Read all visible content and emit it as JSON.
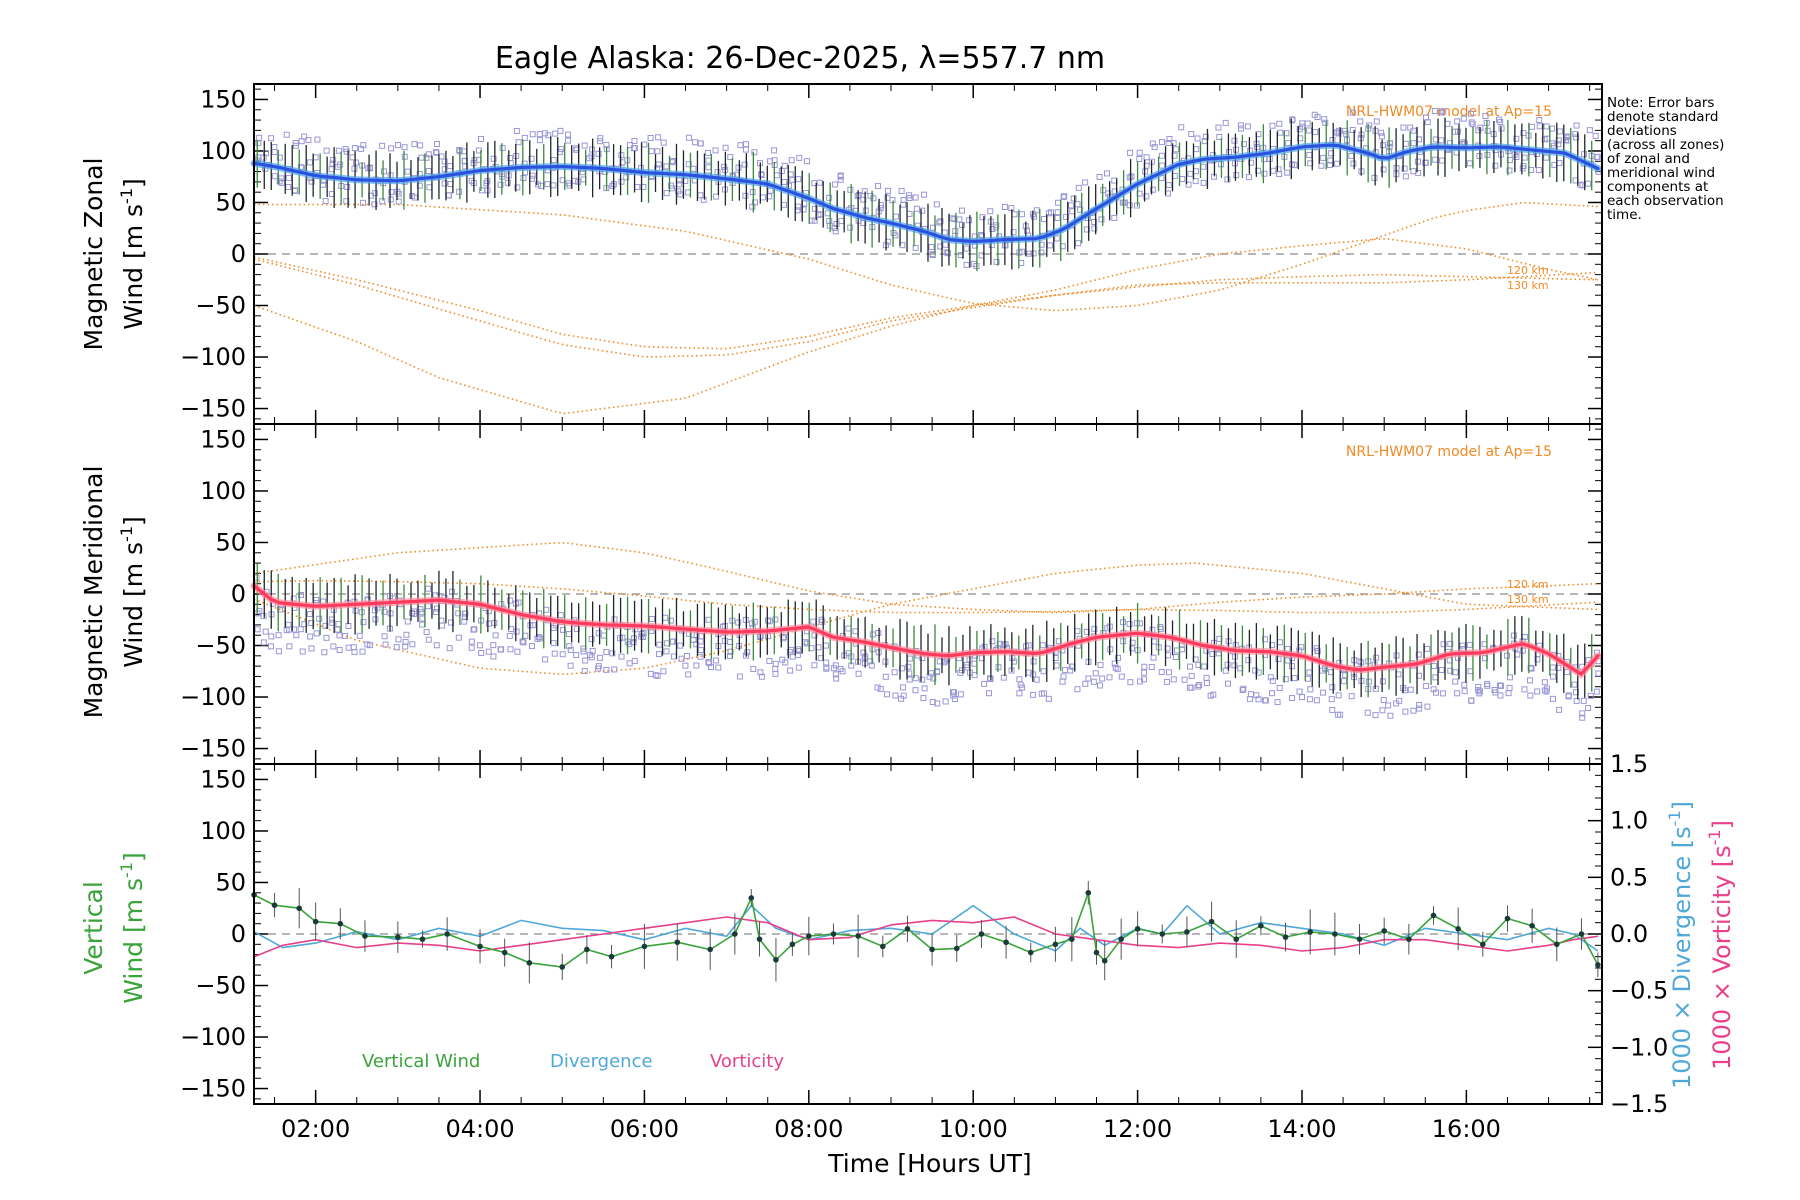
{
  "title": "Eagle Alaska: 26-Dec-2025, λ=557.7 nm",
  "note_lines": [
    "Note: Error bars",
    "denote standard",
    "deviations",
    "(across all zones)",
    "of zonal and",
    "meridional wind",
    "components at",
    "each observation",
    "time."
  ],
  "colors": {
    "model": "#f08a24",
    "zonal_mean": "#2a52e0",
    "zonal_light": "#4fa3e8",
    "meridional_mean": "#ff3a5c",
    "vertical": "#3aa33a",
    "divergence": "#4fa8d8",
    "vorticity": "#e8408a",
    "raw": "#9b96d6",
    "errbar": "#1b2a24",
    "zero": "#8a8a8a",
    "frame": "#000000"
  },
  "chart_data": [
    {
      "panel": "zonal",
      "type": "line",
      "ylabel_line1": "Magnetic Zonal",
      "ylabel_line2": "Wind [m s",
      "ylabel_sup": "-1",
      "ylabel_close": "]",
      "ylim": [
        -165,
        165
      ],
      "yticks": [
        "150",
        "100",
        "50",
        "0",
        "−50",
        "−100",
        "−150"
      ],
      "model_label": "NRL-HWM07 model at Ap=15",
      "alt_labels": [
        "120 km",
        "130 km"
      ],
      "mean_series": {
        "x": [
          1.25,
          1.5,
          2,
          2.5,
          3,
          3.5,
          4,
          4.5,
          5,
          5.5,
          6,
          6.5,
          7,
          7.5,
          8,
          8.3,
          8.7,
          9,
          9.4,
          9.7,
          10,
          10.4,
          10.8,
          11.1,
          11.5,
          12,
          12.5,
          12.8,
          13.2,
          13.6,
          14,
          14.4,
          14.8,
          15,
          15.3,
          15.6,
          16,
          16.4,
          16.8,
          17.2,
          17.6
        ],
        "y": [
          88,
          85,
          76,
          72,
          71,
          75,
          81,
          84,
          85,
          83,
          79,
          77,
          73,
          68,
          54,
          44,
          35,
          30,
          22,
          14,
          12,
          14,
          15,
          24,
          44,
          68,
          87,
          92,
          94,
          98,
          104,
          106,
          98,
          92,
          100,
          104,
          103,
          104,
          101,
          98,
          83
        ]
      },
      "error_half_width": 22,
      "model_curves": [
        {
          "x": [
            1.25,
            3,
            5,
            6.5,
            8,
            9,
            10,
            11,
            12,
            13,
            14,
            15,
            15.6,
            16,
            16.7,
            17.6
          ],
          "y": [
            48,
            48,
            38,
            22,
            -5,
            -30,
            -48,
            -55,
            -50,
            -35,
            -10,
            18,
            35,
            42,
            50,
            46
          ]
        },
        {
          "x": [
            1.25,
            2.5,
            3.5,
            5,
            6.5,
            8,
            9,
            10,
            11,
            12,
            13,
            14,
            15,
            16,
            17,
            17.6
          ],
          "y": [
            -50,
            -85,
            -120,
            -155,
            -140,
            -95,
            -70,
            -50,
            -35,
            -15,
            0,
            8,
            15,
            5,
            -15,
            -25
          ]
        },
        {
          "x": [
            1.25,
            2.5,
            4,
            5,
            6,
            7,
            8,
            9,
            10,
            11,
            12,
            13,
            14,
            15,
            16,
            17.6
          ],
          "y": [
            -5,
            -30,
            -65,
            -88,
            -100,
            -98,
            -85,
            -65,
            -52,
            -40,
            -30,
            -28,
            -28,
            -28,
            -25,
            -18
          ]
        },
        {
          "x": [
            1.25,
            2.5,
            4,
            5,
            6,
            7,
            8,
            9,
            10,
            11,
            12,
            13,
            14,
            15,
            16,
            17.6
          ],
          "y": [
            -3,
            -25,
            -55,
            -78,
            -90,
            -92,
            -80,
            -62,
            -50,
            -40,
            -32,
            -25,
            -22,
            -20,
            -22,
            -25
          ]
        }
      ]
    },
    {
      "panel": "meridional",
      "type": "line",
      "ylabel_line1": "Magnetic Meridional",
      "ylabel_line2": "Wind [m s",
      "ylabel_sup": "-1",
      "ylabel_close": "]",
      "ylim": [
        -165,
        165
      ],
      "yticks": [
        "150",
        "100",
        "50",
        "0",
        "−50",
        "−100",
        "−150"
      ],
      "model_label": "NRL-HWM07 model at Ap=15",
      "alt_labels": [
        "120 km",
        "130 km"
      ],
      "mean_series": {
        "x": [
          1.25,
          1.5,
          2,
          2.5,
          3,
          3.5,
          4,
          4.5,
          5,
          5.5,
          6,
          6.5,
          7,
          7.5,
          8,
          8.3,
          8.7,
          9,
          9.4,
          9.7,
          10,
          10.4,
          10.8,
          11.2,
          11.5,
          12,
          12.4,
          12.8,
          13.2,
          13.6,
          14,
          14.4,
          14.7,
          15,
          15.4,
          15.8,
          16.2,
          16.7,
          17,
          17.4,
          17.6
        ],
        "y": [
          8,
          -8,
          -12,
          -10,
          -8,
          -6,
          -10,
          -20,
          -27,
          -30,
          -31,
          -34,
          -37,
          -36,
          -32,
          -42,
          -47,
          -52,
          -58,
          -60,
          -57,
          -56,
          -58,
          -48,
          -42,
          -38,
          -42,
          -50,
          -55,
          -56,
          -60,
          -70,
          -74,
          -71,
          -68,
          -58,
          -57,
          -48,
          -58,
          -78,
          -60
        ]
      },
      "error_half_width": 22,
      "model_curves": [
        {
          "x": [
            1.25,
            3,
            5,
            6,
            7,
            8,
            9,
            10,
            11,
            12,
            13,
            14,
            15,
            16,
            17,
            17.6
          ],
          "y": [
            20,
            40,
            50,
            40,
            22,
            3,
            -10,
            -15,
            -18,
            -15,
            -8,
            -3,
            0,
            5,
            8,
            10
          ]
        },
        {
          "x": [
            1.25,
            2.5,
            4,
            5,
            6,
            7,
            8,
            9,
            10,
            11,
            12,
            12.7,
            14,
            15,
            16,
            17.6
          ],
          "y": [
            -5,
            -45,
            -72,
            -78,
            -72,
            -55,
            -32,
            -10,
            5,
            20,
            28,
            30,
            20,
            5,
            -10,
            -15
          ]
        },
        {
          "x": [
            1.25,
            2,
            3,
            4,
            5,
            6,
            7,
            8,
            9,
            10,
            11,
            12,
            13,
            14,
            15,
            16,
            17.6
          ],
          "y": [
            12,
            13,
            12,
            10,
            5,
            -2,
            -10,
            -15,
            -18,
            -18,
            -17,
            -15,
            -16,
            -18,
            -18,
            -15,
            -8
          ]
        }
      ]
    },
    {
      "panel": "vertical",
      "type": "line",
      "ylabel_line1": "Vertical",
      "ylabel_line2": "Wind [m s",
      "ylabel_sup": "-1",
      "ylabel_close": "]",
      "ylim": [
        -165,
        165
      ],
      "yticks": [
        "150",
        "100",
        "50",
        "0",
        "−50",
        "−100",
        "−150"
      ],
      "right_axis": {
        "ylim": [
          -1.5,
          1.5
        ],
        "yticks": [
          "1.5",
          "1.0",
          "0.5",
          "0.0",
          "−0.5",
          "−1.0",
          "−1.5"
        ],
        "label_div": "1000 × Divergence [s",
        "label_vor": "1000 × Vorticity [s",
        "sup": "-1",
        "close": "]"
      },
      "legend": [
        "Vertical Wind",
        "Divergence",
        "Vorticity"
      ],
      "vertical_wind": {
        "x": [
          1.25,
          1.5,
          1.8,
          2,
          2.3,
          2.6,
          3,
          3.3,
          3.6,
          4,
          4.3,
          4.6,
          5,
          5.3,
          5.6,
          6,
          6.4,
          6.8,
          7.1,
          7.3,
          7.4,
          7.6,
          7.8,
          8,
          8.3,
          8.6,
          8.9,
          9.2,
          9.5,
          9.8,
          10.1,
          10.4,
          10.7,
          11,
          11.2,
          11.4,
          11.5,
          11.6,
          11.8,
          12,
          12.3,
          12.6,
          12.9,
          13.2,
          13.5,
          13.8,
          14.1,
          14.4,
          14.7,
          15,
          15.3,
          15.6,
          15.9,
          16.2,
          16.5,
          16.8,
          17.1,
          17.4,
          17.6
        ],
        "y": [
          38,
          28,
          25,
          12,
          10,
          -2,
          -3,
          -5,
          0,
          -12,
          -18,
          -28,
          -32,
          -15,
          -22,
          -12,
          -8,
          -15,
          0,
          35,
          -5,
          -25,
          -10,
          -2,
          0,
          -2,
          -12,
          5,
          -15,
          -14,
          0,
          -8,
          -18,
          -10,
          -5,
          40,
          -18,
          -26,
          -5,
          5,
          0,
          2,
          12,
          -5,
          8,
          -3,
          2,
          0,
          -5,
          3,
          -5,
          18,
          5,
          -10,
          15,
          8,
          -10,
          0,
          -30
        ]
      },
      "divergence": {
        "x": [
          1.25,
          1.6,
          2,
          2.5,
          3,
          3.5,
          4,
          4.5,
          5,
          5.5,
          6,
          6.5,
          7,
          7.3,
          7.6,
          8,
          8.5,
          9,
          9.5,
          10,
          10.5,
          11,
          11.3,
          11.6,
          12,
          12.3,
          12.6,
          13,
          13.5,
          14,
          14.5,
          15,
          15.5,
          16,
          16.5,
          17,
          17.3,
          17.6
        ],
        "y": [
          0.02,
          -0.12,
          -0.08,
          0.02,
          -0.05,
          0.05,
          -0.02,
          0.12,
          0.05,
          0.03,
          -0.05,
          0.05,
          -0.02,
          0.25,
          0.05,
          -0.05,
          0.03,
          0.05,
          0.0,
          0.25,
          0.0,
          -0.15,
          0.05,
          -0.1,
          0.05,
          0.0,
          0.25,
          0.0,
          0.1,
          0.05,
          0.0,
          -0.1,
          0.05,
          0.0,
          -0.05,
          0.05,
          0.0,
          -0.15
        ]
      },
      "vorticity": {
        "x": [
          1.25,
          1.6,
          2,
          2.5,
          3,
          3.5,
          4,
          4.5,
          5,
          5.5,
          6,
          6.5,
          7,
          7.5,
          8,
          8.5,
          9,
          9.5,
          10,
          10.5,
          11,
          11.5,
          12,
          12.5,
          13,
          13.5,
          14,
          14.5,
          15,
          15.5,
          16,
          16.5,
          17,
          17.3,
          17.6
        ],
        "y": [
          -0.2,
          -0.1,
          -0.05,
          -0.12,
          -0.08,
          -0.1,
          -0.15,
          -0.1,
          -0.05,
          0.0,
          0.05,
          0.1,
          0.15,
          0.1,
          -0.05,
          -0.03,
          0.08,
          0.12,
          0.1,
          0.15,
          0.0,
          -0.05,
          -0.1,
          -0.12,
          -0.08,
          -0.1,
          -0.15,
          -0.12,
          -0.05,
          -0.05,
          -0.1,
          -0.15,
          -0.1,
          -0.05,
          -0.02
        ]
      }
    }
  ],
  "x_axis": {
    "xlim": [
      1.25,
      17.65
    ],
    "tick_values": [
      2,
      4,
      6,
      8,
      10,
      12,
      14,
      16
    ],
    "tick_labels": [
      "02:00",
      "04:00",
      "06:00",
      "08:00",
      "10:00",
      "12:00",
      "14:00",
      "16:00"
    ],
    "label": "Time [Hours UT]"
  }
}
